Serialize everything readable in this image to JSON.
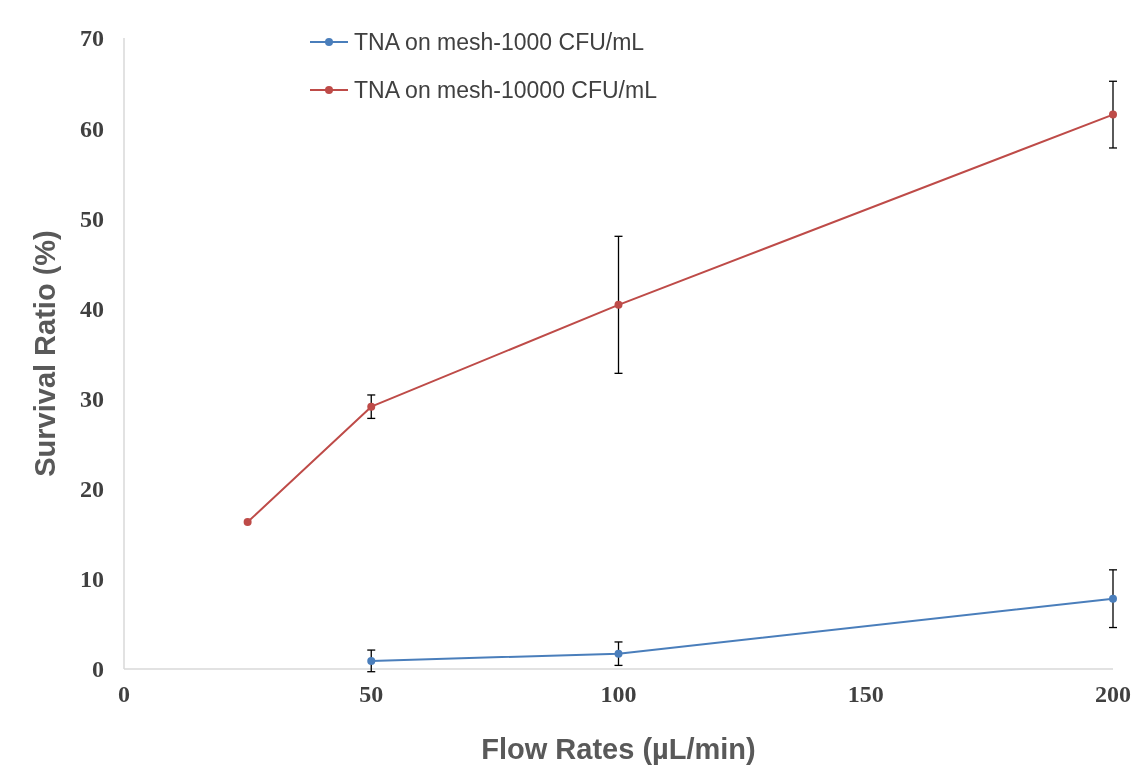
{
  "chart_data": {
    "type": "line",
    "xlabel": "Flow Rates (µL/min)",
    "ylabel": "Survival Ratio (%)",
    "xlim": [
      0,
      200
    ],
    "xticks": [
      0,
      50,
      100,
      150,
      200
    ],
    "ylim": [
      0,
      70
    ],
    "yticks": [
      0,
      10,
      20,
      30,
      40,
      50,
      60,
      70
    ],
    "grid": false,
    "legend": "top left",
    "marker": "circle",
    "line_style": "solid",
    "series": [
      {
        "name": "TNA on mesh-1000 CFU/mL",
        "color": "#4a7ebb",
        "x": [
          50,
          100,
          200
        ],
        "values": [
          0.9,
          1.7,
          7.8
        ],
        "errors": [
          1.2,
          1.3,
          3.2
        ]
      },
      {
        "name": "TNA on mesh-10000 CFU/mL",
        "color": "#be4b48",
        "x": [
          25,
          50,
          100,
          200
        ],
        "values": [
          16.3,
          29.1,
          40.4,
          61.5
        ],
        "errors": [
          null,
          1.3,
          7.6,
          3.7
        ]
      }
    ]
  }
}
